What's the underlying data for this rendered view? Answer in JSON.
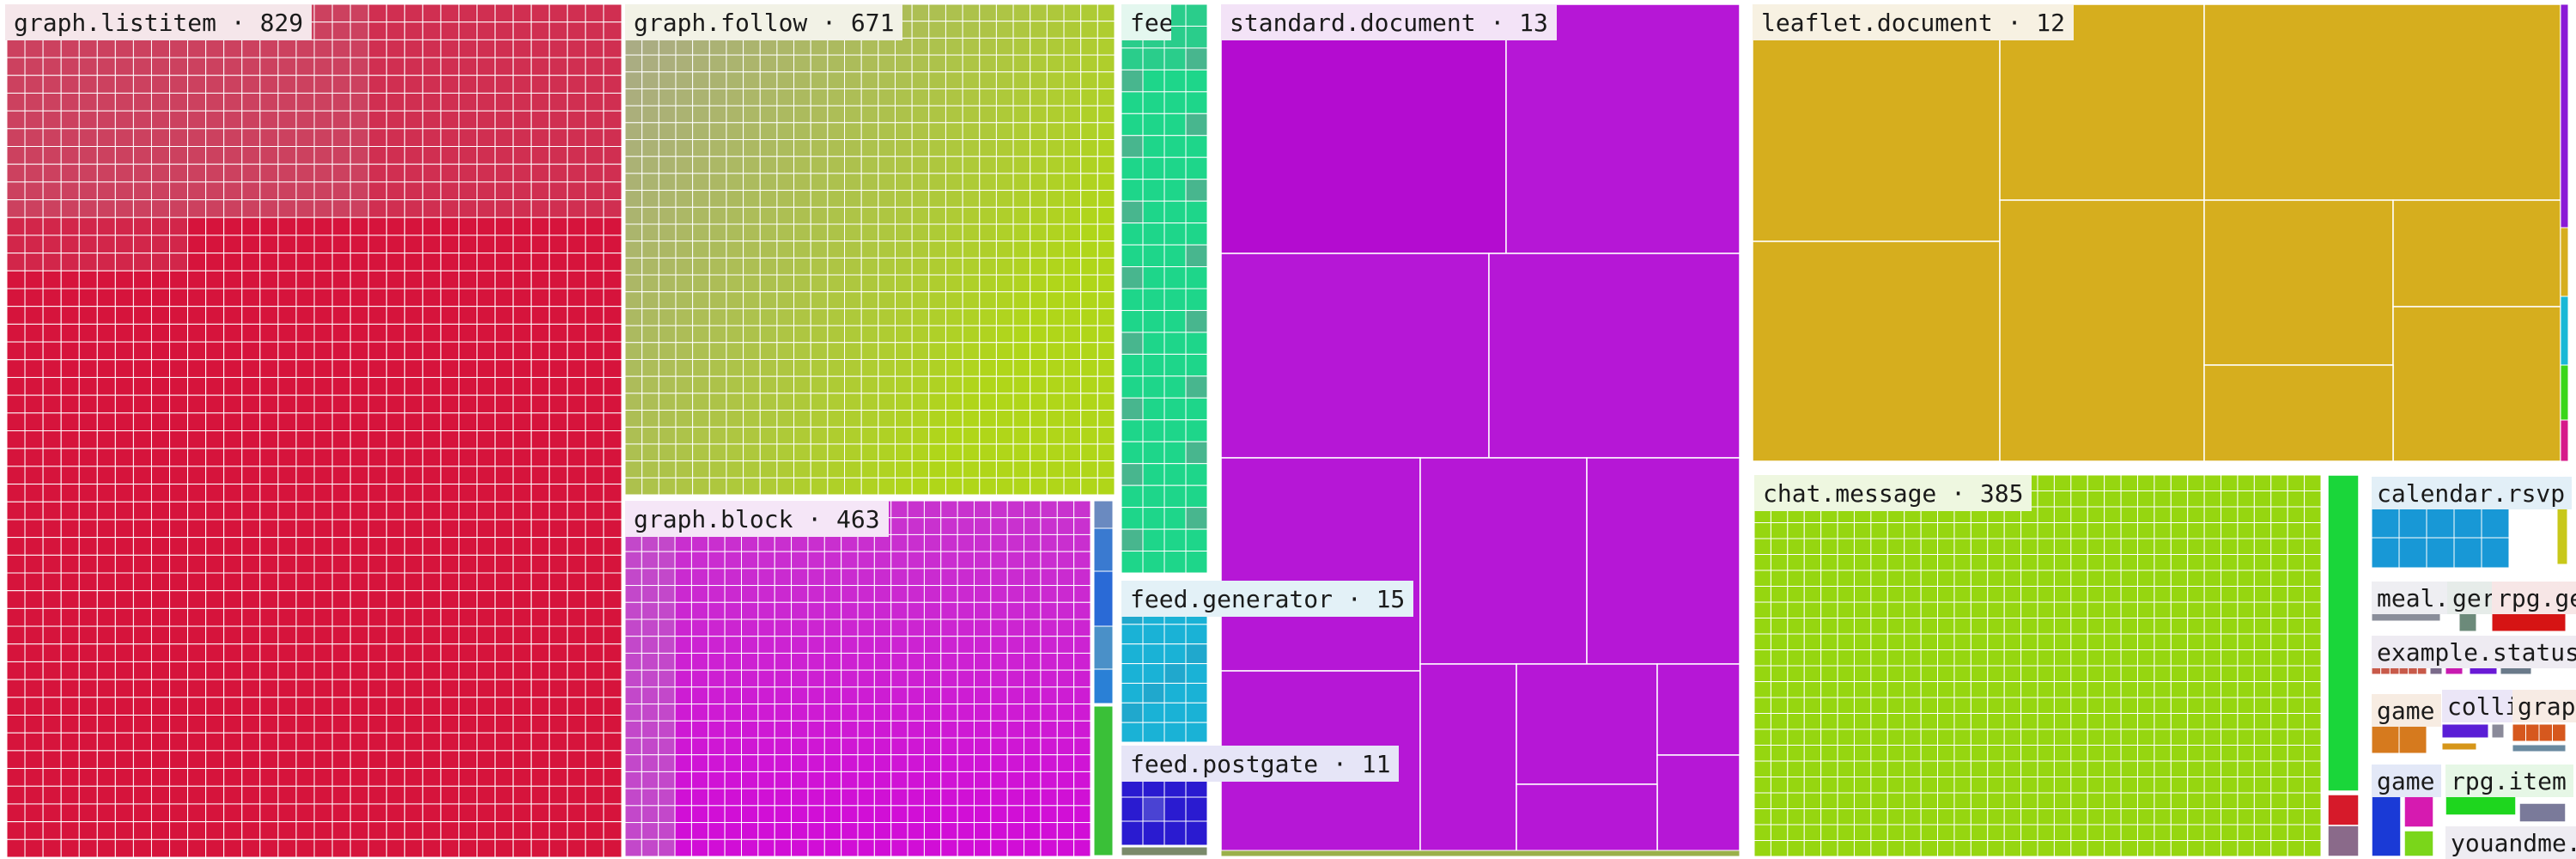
{
  "chart_data": {
    "type": "treemap",
    "groups": [
      {
        "label": "graph.listitem · 829",
        "color": "#d6143c",
        "tint": "#c9506a"
      },
      {
        "label": "graph.follow · 671",
        "color": "#b0d619",
        "tint": "#aaaa88"
      },
      {
        "label": "graph.block · 463",
        "color": "#d10ed6",
        "tint": "#b878c0"
      },
      {
        "label": "feed.t",
        "color": "#1ed68a",
        "tint": "#4cc8a0"
      },
      {
        "label": "standard.document · 13",
        "color": "#b617d6"
      },
      {
        "label": "feed.generator · 15",
        "color": "#1ab2d6"
      },
      {
        "label": "feed.postgate · 11",
        "color": "#2a1bd0"
      },
      {
        "label": "leaflet.document · 12",
        "color": "#d6ae1e"
      },
      {
        "label": "chat.message · 385",
        "color": "#96d610"
      },
      {
        "label": "calendar.rsvp",
        "color": "#1898d6"
      },
      {
        "label": "meal.",
        "color": "#8a8e9a"
      },
      {
        "label": "ger",
        "color": "#6c8a7a"
      },
      {
        "label": "rpg.ge",
        "color": "#d61414"
      },
      {
        "label": "example.status",
        "color": "#7a6a8a"
      },
      {
        "label": "game",
        "color": "#d67a1e"
      },
      {
        "label": "colli",
        "color": "#5a1ed6"
      },
      {
        "label": "grap",
        "color": "#d6581e"
      },
      {
        "label": "game",
        "color": "#1a3ad6"
      },
      {
        "label": "rpg.item",
        "color": "#1ed61e"
      },
      {
        "label": "youandme.",
        "color": "#7a6e8e"
      }
    ]
  }
}
